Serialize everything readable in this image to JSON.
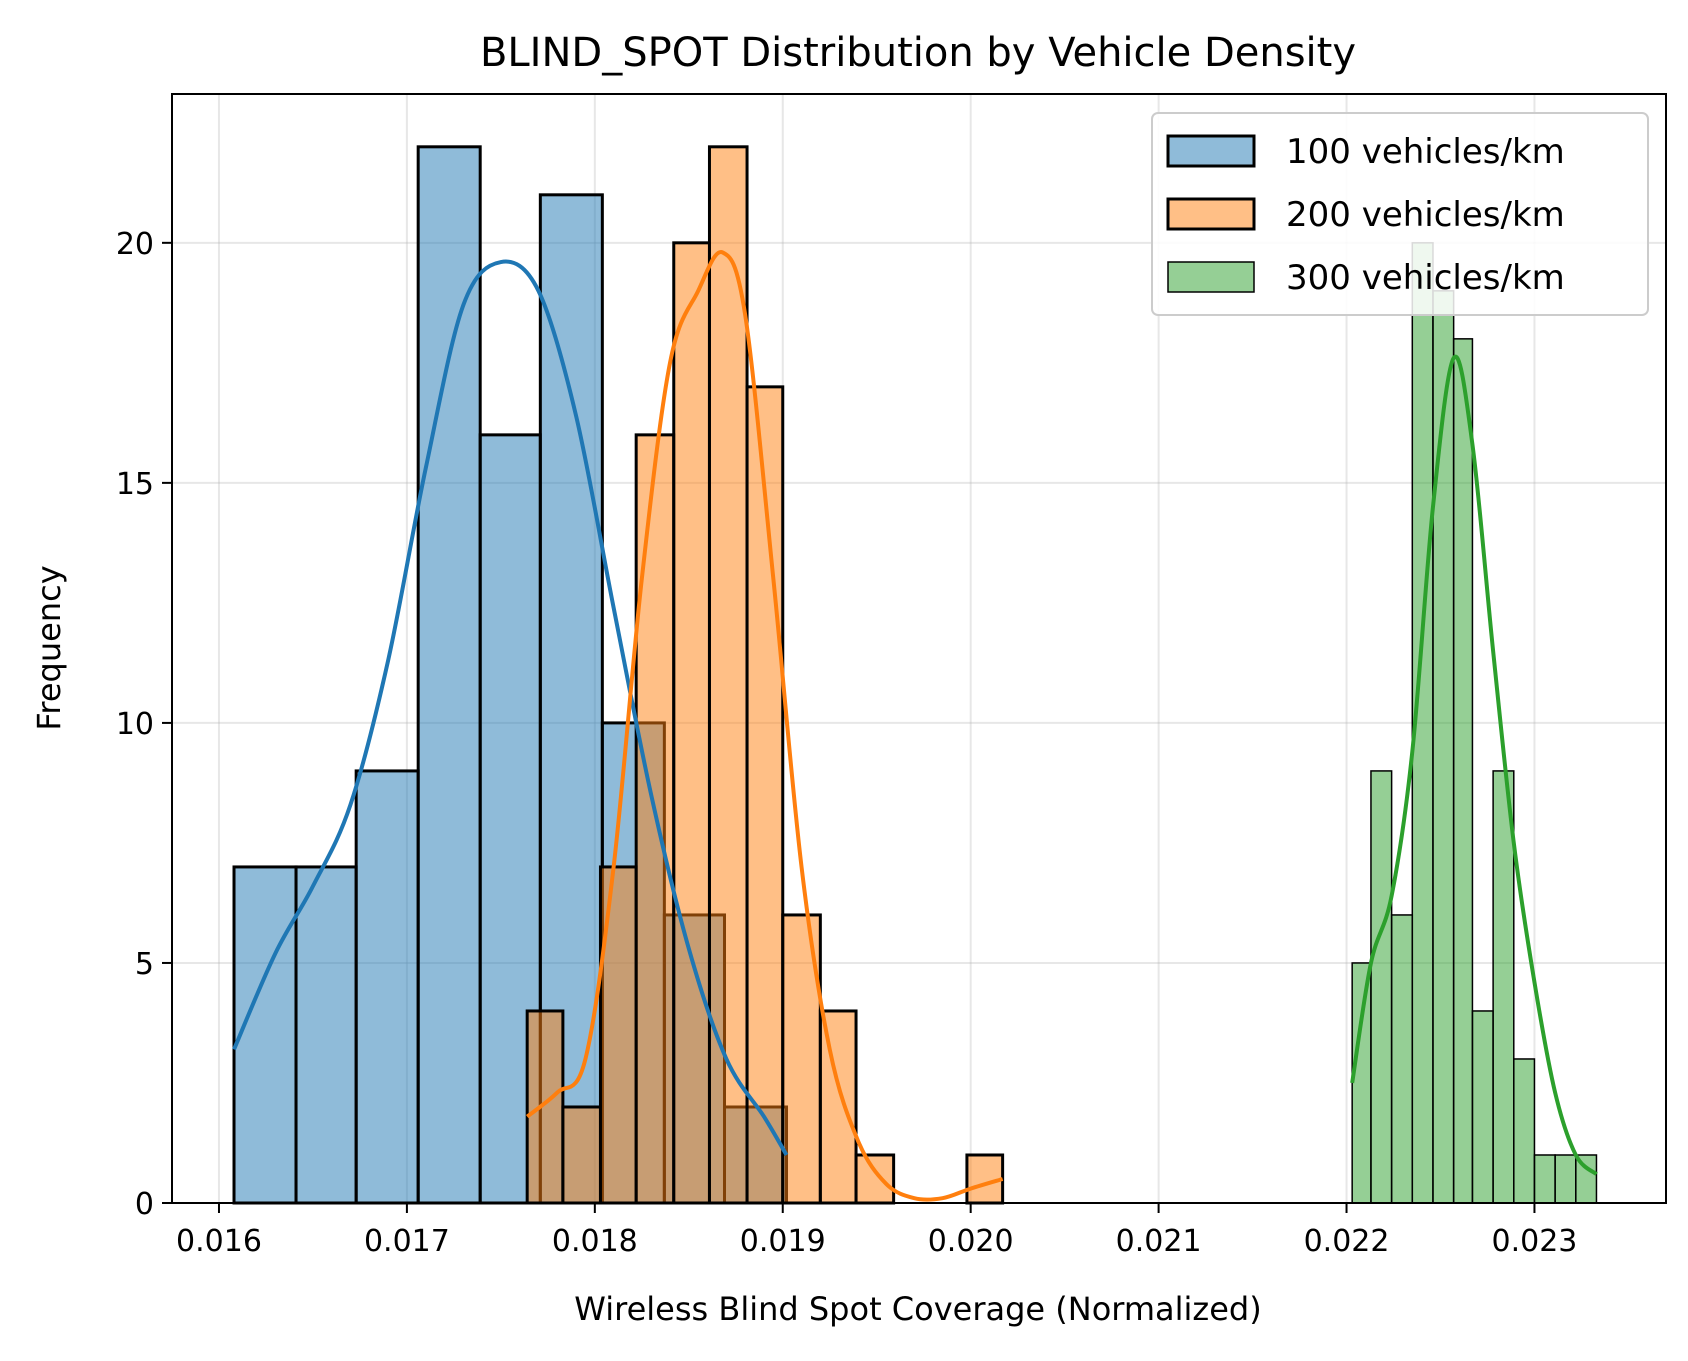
{
  "chart_data": {
    "type": "histogram",
    "title": "BLIND_SPOT Distribution by Vehicle Density",
    "xlabel": "Wireless Blind Spot Coverage (Normalized)",
    "ylabel": "Frequency",
    "xlim": [
      0.01575,
      0.0237
    ],
    "ylim": [
      0,
      23.1
    ],
    "xticks": [
      0.016,
      0.017,
      0.018,
      0.019,
      0.02,
      0.021,
      0.022,
      0.023
    ],
    "xtick_labels": [
      "0.016",
      "0.017",
      "0.018",
      "0.019",
      "0.020",
      "0.021",
      "0.022",
      "0.023"
    ],
    "yticks": [
      0,
      5,
      10,
      15,
      20
    ],
    "ytick_labels": [
      "0",
      "5",
      "10",
      "15",
      "20"
    ],
    "grid": true,
    "legend_position": "top-right",
    "series": [
      {
        "name": "100 vehicles/km",
        "color": "#1f77b4",
        "edge_color": "#000000",
        "bins": [
          0.01608,
          0.01641,
          0.01673,
          0.01706,
          0.01739,
          0.01771,
          0.01804,
          0.01837,
          0.01869,
          0.01902
        ],
        "counts": [
          7,
          7,
          9,
          22,
          16,
          21,
          10,
          6,
          2
        ],
        "kde": [
          [
            0.01608,
            3.2
          ],
          [
            0.0163,
            5.2
          ],
          [
            0.0165,
            6.6
          ],
          [
            0.0167,
            8.3
          ],
          [
            0.0169,
            11.3
          ],
          [
            0.0171,
            15.3
          ],
          [
            0.0173,
            18.7
          ],
          [
            0.0175,
            19.6
          ],
          [
            0.0177,
            19.0
          ],
          [
            0.0179,
            16.4
          ],
          [
            0.0181,
            12.4
          ],
          [
            0.0183,
            8.5
          ],
          [
            0.0185,
            5.3
          ],
          [
            0.0187,
            3.0
          ],
          [
            0.0189,
            1.8
          ],
          [
            0.01902,
            1.0
          ]
        ]
      },
      {
        "name": "200 vehicles/km",
        "color": "#ff7f0e",
        "edge_color": "#000000",
        "bins": [
          0.01764,
          0.01783,
          0.01803,
          0.01822,
          0.01842,
          0.01861,
          0.01881,
          0.019,
          0.0192,
          0.01939,
          0.01959,
          0.01978,
          0.01998,
          0.02017
        ],
        "counts": [
          4,
          2,
          7,
          16,
          20,
          22,
          17,
          6,
          4,
          1,
          0,
          0,
          1
        ],
        "kde": [
          [
            0.01764,
            1.8
          ],
          [
            0.0178,
            2.3
          ],
          [
            0.01795,
            3.0
          ],
          [
            0.0181,
            7.0
          ],
          [
            0.01825,
            13.0
          ],
          [
            0.0184,
            17.5
          ],
          [
            0.01855,
            19.0
          ],
          [
            0.01868,
            19.8
          ],
          [
            0.0188,
            18.5
          ],
          [
            0.01895,
            13.0
          ],
          [
            0.0191,
            7.0
          ],
          [
            0.01925,
            3.2
          ],
          [
            0.0194,
            1.3
          ],
          [
            0.01955,
            0.4
          ],
          [
            0.0197,
            0.1
          ],
          [
            0.01985,
            0.1
          ],
          [
            0.02,
            0.3
          ],
          [
            0.02017,
            0.5
          ]
        ]
      },
      {
        "name": "300 vehicles/km",
        "color": "#2ca02c",
        "edge_color": "#000000",
        "bins": [
          0.02203,
          0.02213,
          0.02224,
          0.02235,
          0.02246,
          0.02257,
          0.02267,
          0.02278,
          0.02289,
          0.023,
          0.02311,
          0.02322,
          0.02333
        ],
        "counts": [
          5,
          9,
          6,
          20,
          19,
          18,
          4,
          9,
          3,
          1,
          1,
          1
        ],
        "kde": [
          [
            0.02203,
            2.5
          ],
          [
            0.02213,
            5.0
          ],
          [
            0.02224,
            6.4
          ],
          [
            0.02235,
            9.4
          ],
          [
            0.02246,
            14.5
          ],
          [
            0.02257,
            17.6
          ],
          [
            0.02267,
            15.8
          ],
          [
            0.02278,
            11.5
          ],
          [
            0.02289,
            7.5
          ],
          [
            0.023,
            4.6
          ],
          [
            0.02311,
            2.3
          ],
          [
            0.02322,
            1.0
          ],
          [
            0.02333,
            0.6
          ]
        ]
      }
    ]
  }
}
